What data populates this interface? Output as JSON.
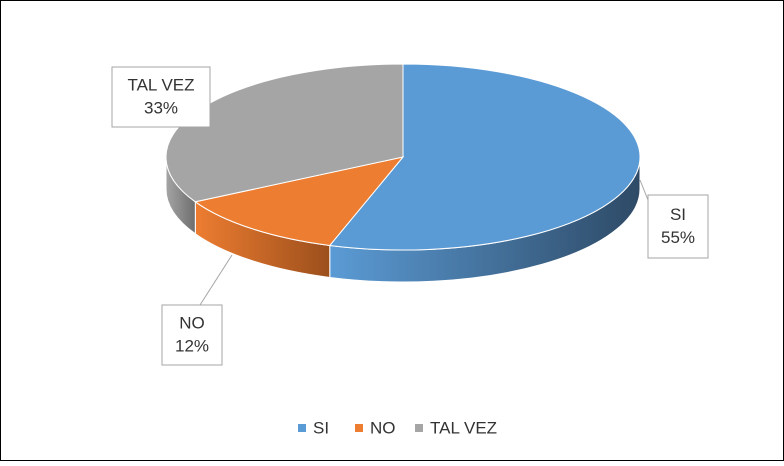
{
  "chart_data": {
    "type": "pie",
    "categories": [
      "SI",
      "NO",
      "TAL VEZ"
    ],
    "values": [
      55,
      12,
      33
    ],
    "value_labels": [
      "55%",
      "12%",
      "33%"
    ],
    "colors": [
      "#5b9bd5",
      "#ed7d31",
      "#a5a5a5"
    ],
    "side_colors": [
      "#2e4a66",
      "#9c4f1c",
      "#6e6e6e"
    ],
    "legend": "bottom",
    "three_d": true
  }
}
